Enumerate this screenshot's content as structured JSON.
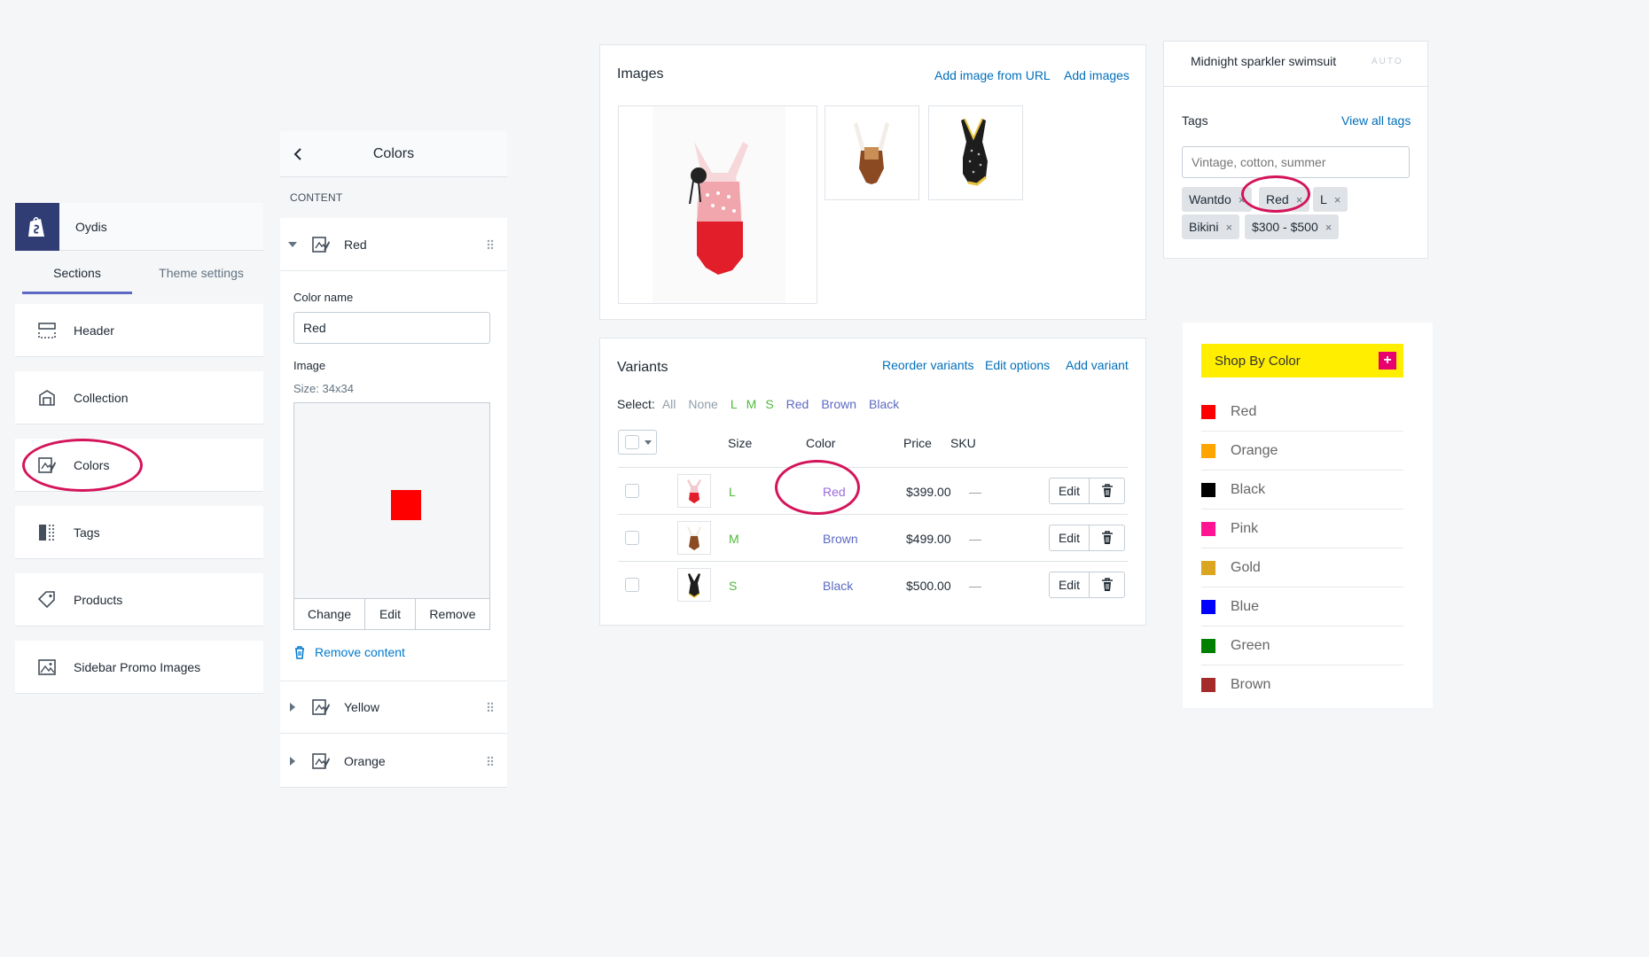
{
  "theme": {
    "name": "Oydis",
    "tabs": [
      "Sections",
      "Theme settings"
    ],
    "sections": [
      {
        "label": "Header",
        "icon": "header-icon"
      },
      {
        "label": "Collection",
        "icon": "collection-icon"
      },
      {
        "label": "Colors",
        "icon": "colors-icon"
      },
      {
        "label": "Tags",
        "icon": "tags-icon"
      },
      {
        "label": "Products",
        "icon": "tag-icon"
      },
      {
        "label": "Sidebar Promo Images",
        "icon": "image-icon"
      }
    ]
  },
  "colors_panel": {
    "title": "Colors",
    "content_label": "CONTENT",
    "expanded_block": "Red",
    "color_name_label": "Color name",
    "color_name_value": "Red",
    "image_label": "Image",
    "size_hint": "Size: 34x34",
    "swatch_color": "#ff0000",
    "buttons": [
      "Change",
      "Edit",
      "Remove"
    ],
    "remove_content": "Remove content",
    "collapsed_blocks": [
      "Yellow",
      "Orange"
    ]
  },
  "images_card": {
    "title": "Images",
    "links": [
      "Add image from URL",
      "Add images"
    ]
  },
  "variants_card": {
    "title": "Variants",
    "links": [
      "Reorder variants",
      "Edit options",
      "Add variant"
    ],
    "select_label": "Select:",
    "select_options": [
      "All",
      "None",
      "L",
      "M",
      "S",
      "Red",
      "Brown",
      "Black"
    ],
    "columns": [
      "Size",
      "Color",
      "Price",
      "SKU"
    ],
    "rows": [
      {
        "size": "L",
        "color": "Red",
        "price": "$399.00",
        "sku": "—",
        "edit": "Edit"
      },
      {
        "size": "M",
        "color": "Brown",
        "price": "$499.00",
        "sku": "—",
        "edit": "Edit"
      },
      {
        "size": "S",
        "color": "Black",
        "price": "$500.00",
        "sku": "—",
        "edit": "Edit"
      }
    ]
  },
  "seo_card": {
    "title": "Midnight sparkler swimsuit",
    "badge": "AUTO"
  },
  "tags_card": {
    "title": "Tags",
    "link": "View all tags",
    "placeholder": "Vintage, cotton, summer",
    "tags": [
      "Wantdo",
      "Red",
      "L",
      "Bikini",
      "$300 - $500"
    ],
    "remove_glyph": "×"
  },
  "shop_by_color": {
    "title": "Shop By Color",
    "plus": "+",
    "colors": [
      {
        "name": "Red",
        "hex": "#ff0000"
      },
      {
        "name": "Orange",
        "hex": "#ffa500"
      },
      {
        "name": "Black",
        "hex": "#000000"
      },
      {
        "name": "Pink",
        "hex": "#ff1493"
      },
      {
        "name": "Gold",
        "hex": "#daa520"
      },
      {
        "name": "Blue",
        "hex": "#0000ff"
      },
      {
        "name": "Green",
        "hex": "#008000"
      },
      {
        "name": "Brown",
        "hex": "#a52a2a"
      }
    ]
  },
  "accent": {
    "highlight_ring": "#d4145a",
    "link": "#006fbb",
    "tab_indicator": "#5c6ac4"
  }
}
